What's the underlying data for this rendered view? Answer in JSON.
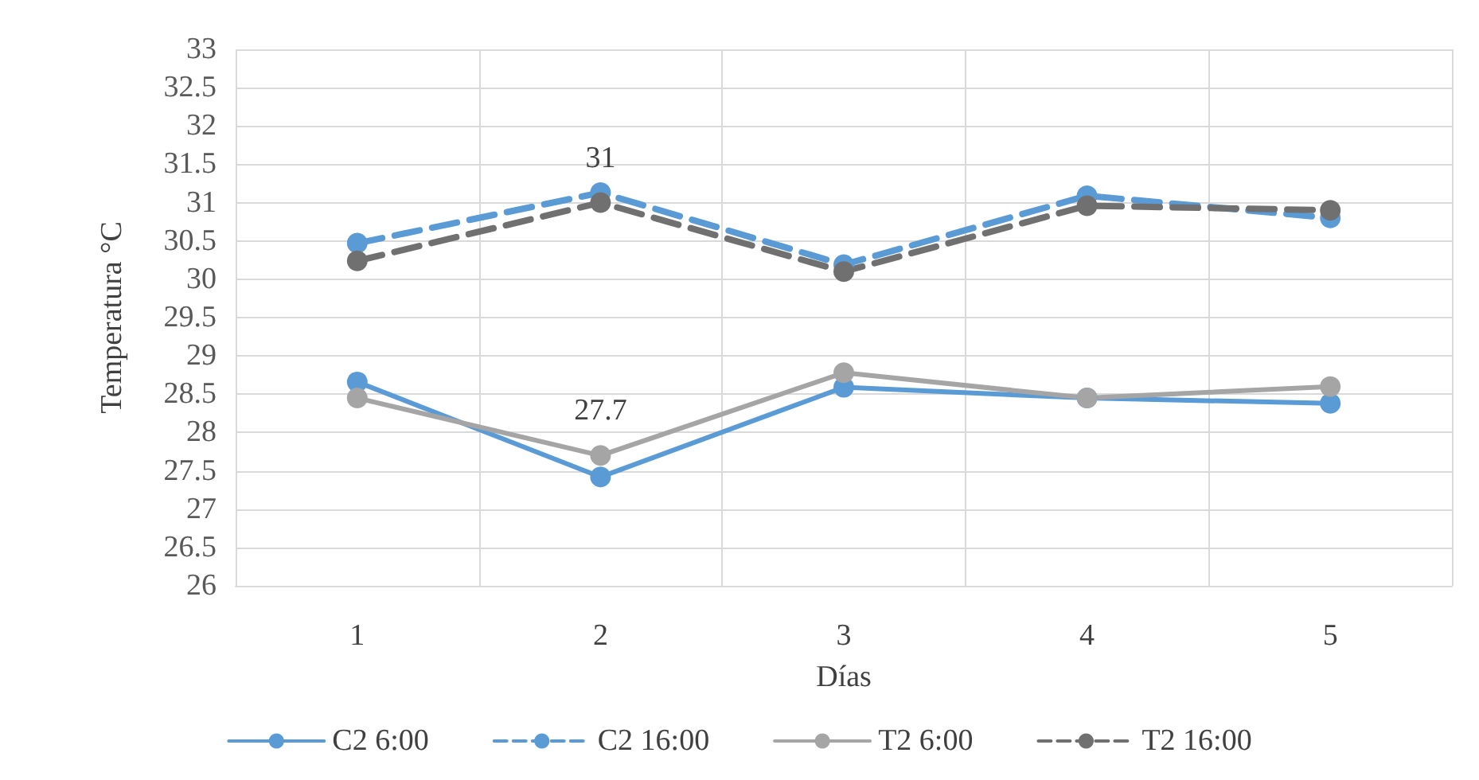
{
  "chart_data": {
    "type": "line",
    "xlabel": "Días",
    "ylabel": "Temperatura °C",
    "categories": [
      "1",
      "2",
      "3",
      "4",
      "5"
    ],
    "ylim": [
      26,
      33
    ],
    "yticks": [
      26,
      26.5,
      27,
      27.5,
      28,
      28.5,
      29,
      29.5,
      30,
      30.5,
      31,
      31.5,
      32,
      32.5,
      33
    ],
    "grid": true,
    "legend": "bottom",
    "marker": "circle",
    "series": [
      {
        "name": "C2 6:00",
        "color": "#5b9bd5",
        "line_style": "solid",
        "values": [
          28.66,
          27.42,
          28.59,
          28.45,
          28.38
        ]
      },
      {
        "name": "C2 16:00",
        "color": "#5b9bd5",
        "line_style": "dashed",
        "values": [
          30.47,
          31.13,
          30.19,
          31.09,
          30.8
        ]
      },
      {
        "name": "T2 6:00",
        "color": "#a5a5a5",
        "line_style": "solid",
        "values": [
          28.45,
          27.7,
          28.78,
          28.45,
          28.6
        ],
        "value_labels": [
          null,
          "27.7",
          null,
          null,
          null
        ]
      },
      {
        "name": "T2 16:00",
        "color": "#707070",
        "line_style": "dashed",
        "values": [
          30.24,
          31,
          30.1,
          30.96,
          30.9
        ],
        "value_labels": [
          null,
          "31",
          null,
          null,
          null
        ]
      }
    ]
  }
}
